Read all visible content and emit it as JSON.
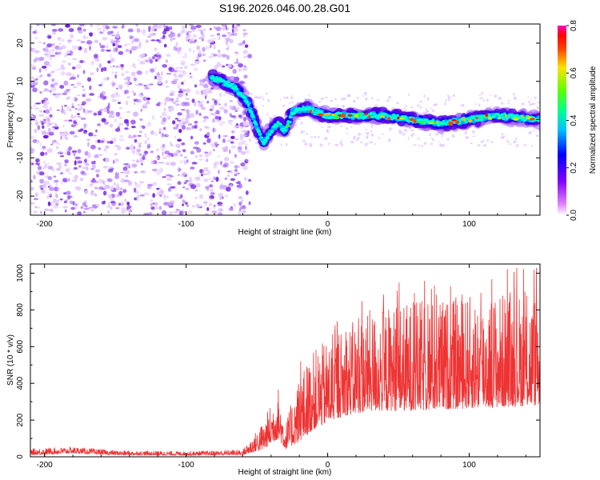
{
  "title": "S196.2026.046.00.28.G01",
  "chart_data": [
    {
      "type": "heatmap",
      "name": "spectrogram",
      "xlabel": "Height of straight line (km)",
      "ylabel": "Frequency (Hz)",
      "xlim": [
        -210,
        150
      ],
      "ylim": [
        -25,
        25
      ],
      "xticks": [
        -200,
        -100,
        0,
        100
      ],
      "yticks": [
        -20,
        -10,
        0,
        10,
        20
      ],
      "colorbar": {
        "label": "Normalized spectral amplitude",
        "range": [
          0.0,
          0.8
        ],
        "ticks": [
          0.0,
          0.2,
          0.4,
          0.6,
          0.8
        ],
        "colors": [
          "#ffffff",
          "#a060ff",
          "#5000e0",
          "#0000ff",
          "#00b0ff",
          "#00ffd0",
          "#30ff30",
          "#c0ff00",
          "#ffc000",
          "#ff4000",
          "#ff0000",
          "#ff00c0"
        ]
      },
      "noise_region_km": [
        -210,
        -55
      ],
      "signal_track": [
        {
          "x": -82,
          "y": 11
        },
        {
          "x": -75,
          "y": 10
        },
        {
          "x": -68,
          "y": 9
        },
        {
          "x": -62,
          "y": 7
        },
        {
          "x": -56,
          "y": 4
        },
        {
          "x": -52,
          "y": 0
        },
        {
          "x": -48,
          "y": -4
        },
        {
          "x": -45,
          "y": -6
        },
        {
          "x": -40,
          "y": -3
        },
        {
          "x": -35,
          "y": -1
        },
        {
          "x": -30,
          "y": -3
        },
        {
          "x": -25,
          "y": 2
        },
        {
          "x": -15,
          "y": 3
        },
        {
          "x": 0,
          "y": 1
        },
        {
          "x": 20,
          "y": 1
        },
        {
          "x": 40,
          "y": 1
        },
        {
          "x": 60,
          "y": 0
        },
        {
          "x": 80,
          "y": -1
        },
        {
          "x": 100,
          "y": 0
        },
        {
          "x": 120,
          "y": 1
        },
        {
          "x": 150,
          "y": 0
        }
      ]
    },
    {
      "type": "line",
      "name": "snr",
      "xlabel": "Height of straight line (km)",
      "ylabel": "SNR (10 * v/v)",
      "xlim": [
        -210,
        150
      ],
      "ylim": [
        0,
        1050
      ],
      "xticks": [
        -200,
        -100,
        0,
        100
      ],
      "yticks": [
        0,
        200,
        400,
        600,
        800,
        1000
      ],
      "color": "#ee3333",
      "envelope": [
        {
          "x": -210,
          "low": 10,
          "high": 45
        },
        {
          "x": -180,
          "low": 20,
          "high": 55
        },
        {
          "x": -150,
          "low": 10,
          "high": 35
        },
        {
          "x": -100,
          "low": 8,
          "high": 30
        },
        {
          "x": -60,
          "low": 10,
          "high": 40
        },
        {
          "x": -45,
          "low": 40,
          "high": 200
        },
        {
          "x": -35,
          "low": 100,
          "high": 390
        },
        {
          "x": -30,
          "low": 40,
          "high": 180
        },
        {
          "x": -20,
          "low": 80,
          "high": 450
        },
        {
          "x": -10,
          "low": 150,
          "high": 580
        },
        {
          "x": 10,
          "low": 220,
          "high": 700
        },
        {
          "x": 30,
          "low": 250,
          "high": 800
        },
        {
          "x": 60,
          "low": 250,
          "high": 850
        },
        {
          "x": 90,
          "low": 260,
          "high": 870
        },
        {
          "x": 120,
          "low": 270,
          "high": 900
        },
        {
          "x": 150,
          "low": 280,
          "high": 900
        }
      ]
    }
  ]
}
